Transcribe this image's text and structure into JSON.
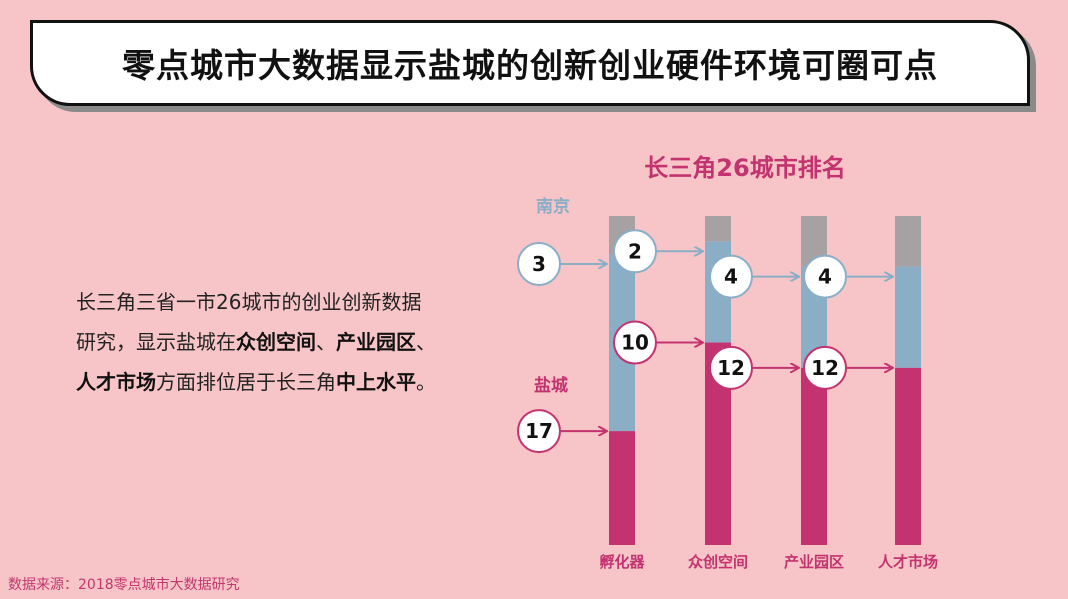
{
  "header": {
    "title": "零点城市大数据显示盐城的创新创业硬件环境可圈可点"
  },
  "description": {
    "p1": "长三角三省一市26城市的创业创新数据研究，显示盐城在",
    "b1": "众创空间",
    "p2": "、",
    "b2": "产业园区",
    "p3": "、",
    "b3": "人才市场",
    "p4": "方面排位居于长三角",
    "b4": "中上水平",
    "p5": "。"
  },
  "source": "数据来源：2018零点城市大数据研究",
  "colors": {
    "nanjing": "#8aaec6",
    "yancheng": "#c3336f",
    "total": "#a6a1a3",
    "title": "#c3336f"
  },
  "chart_data": {
    "type": "bar",
    "title": "长三角26城市排名",
    "categories": [
      "孵化器",
      "众创空间",
      "产业园区",
      "人才市场"
    ],
    "total": 26,
    "series": [
      {
        "name": "南京",
        "values": [
          3,
          2,
          4,
          4
        ]
      },
      {
        "name": "盐城",
        "values": [
          17,
          10,
          12,
          12
        ]
      }
    ]
  }
}
